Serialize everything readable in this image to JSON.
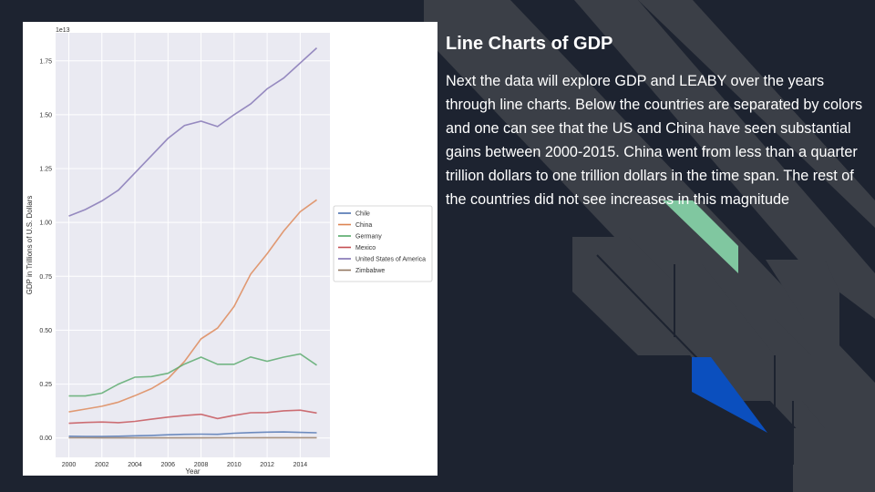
{
  "slide": {
    "title": "Line Charts of GDP",
    "body": "Next the data will explore GDP and LEABY over the years through line charts. Below the countries are separated by colors and one can see that the US and China have seen substantial gains between 2000-2015. China went from less than a quarter trillion dollars to one trillion dollars in the time span. The rest of the countries did not see increases in this magnitude"
  },
  "theme": {
    "slide_bg": "#1d2330",
    "deco_gray": "#3b3f47",
    "deco_green": "#80c7a0",
    "deco_blue": "#0b4fbe",
    "plot_bg": "#eaeaf2",
    "grid": "#ffffff"
  },
  "chart_data": {
    "type": "line",
    "xlabel": "Year",
    "ylabel": "GDP in Trillions of U.S. Dollars",
    "offset_label": "1e13",
    "xlim": [
      1999.2,
      2015.8
    ],
    "ylim": [
      -0.09,
      1.88
    ],
    "x_ticks": [
      2000,
      2002,
      2004,
      2006,
      2008,
      2010,
      2012,
      2014
    ],
    "x_tick_labels": [
      "2000",
      "2002",
      "2004",
      "2006",
      "2008",
      "2010",
      "2012",
      "2014"
    ],
    "y_ticks": [
      0,
      0.25,
      0.5,
      0.75,
      1.0,
      1.25,
      1.5,
      1.75
    ],
    "y_tick_labels": [
      "0.00",
      "0.25",
      "0.50",
      "0.75",
      "1.00",
      "1.25",
      "1.50",
      "1.75"
    ],
    "grid": true,
    "legend_position": "center-right-outside",
    "x": [
      2000,
      2001,
      2002,
      2003,
      2004,
      2005,
      2006,
      2007,
      2008,
      2009,
      2010,
      2011,
      2012,
      2013,
      2014,
      2015
    ],
    "series": [
      {
        "name": "Chile",
        "color": "#4c72b0",
        "values": [
          0.008,
          0.007,
          0.007,
          0.008,
          0.01,
          0.012,
          0.015,
          0.017,
          0.018,
          0.017,
          0.022,
          0.025,
          0.027,
          0.028,
          0.026,
          0.024
        ]
      },
      {
        "name": "China",
        "color": "#dd8452",
        "values": [
          0.121,
          0.134,
          0.147,
          0.166,
          0.196,
          0.229,
          0.275,
          0.355,
          0.46,
          0.51,
          0.61,
          0.76,
          0.855,
          0.96,
          1.05,
          1.105
        ]
      },
      {
        "name": "Germany",
        "color": "#55a868",
        "values": [
          0.195,
          0.195,
          0.208,
          0.25,
          0.282,
          0.285,
          0.3,
          0.343,
          0.375,
          0.342,
          0.342,
          0.376,
          0.356,
          0.375,
          0.39,
          0.338
        ]
      },
      {
        "name": "Mexico",
        "color": "#c44e52",
        "values": [
          0.068,
          0.072,
          0.074,
          0.071,
          0.077,
          0.087,
          0.097,
          0.104,
          0.11,
          0.09,
          0.105,
          0.117,
          0.118,
          0.126,
          0.129,
          0.116
        ]
      },
      {
        "name": "United States of America",
        "color": "#8172b3",
        "values": [
          1.03,
          1.06,
          1.1,
          1.15,
          1.23,
          1.31,
          1.39,
          1.45,
          1.47,
          1.445,
          1.5,
          1.55,
          1.62,
          1.67,
          1.74,
          1.81
        ]
      },
      {
        "name": "Zimbabwe",
        "color": "#937860",
        "values": [
          0.0007,
          0.0007,
          0.0006,
          0.0006,
          0.0005,
          0.0005,
          0.0005,
          0.0005,
          0.0004,
          0.0009,
          0.001,
          0.0011,
          0.0012,
          0.0013,
          0.0014,
          0.0015
        ]
      }
    ]
  }
}
